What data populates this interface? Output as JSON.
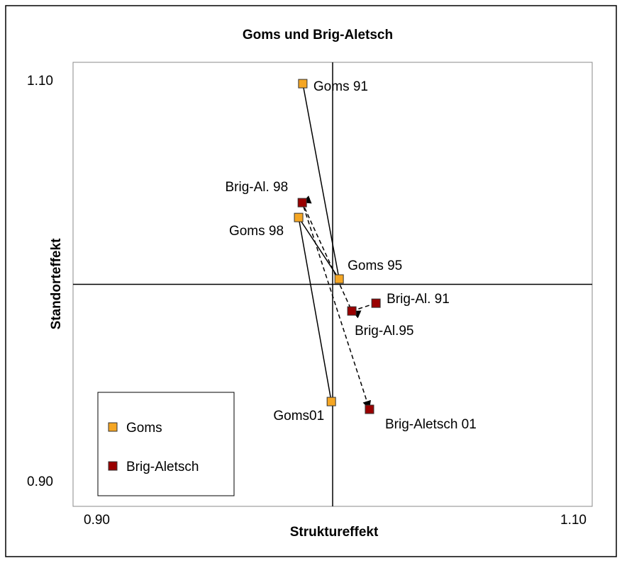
{
  "chart_data": {
    "type": "scatter",
    "title": "Goms und Brig-Aletsch",
    "xlabel": "Strukture­ffekt",
    "ylabel": "Standorteffekt",
    "xlim": [
      0.9,
      1.1
    ],
    "ylim": [
      0.9,
      1.1
    ],
    "xticks": [
      {
        "value": 0.9,
        "label": "0.90"
      },
      {
        "value": 1.1,
        "label": "1.10"
      }
    ],
    "yticks": [
      {
        "value": 0.9,
        "label": "0.90"
      },
      {
        "value": 1.1,
        "label": "1.10"
      }
    ],
    "x_axis_at": 1,
    "y_axis_at": 1,
    "legend": "lower left",
    "series": [
      {
        "name": "Goms",
        "color": "#f5a623",
        "dashed": false,
        "arrows": false,
        "labels": [
          "Goms 91",
          "Goms 95",
          "Goms 98",
          "Goms01"
        ],
        "x": [
          0.9885,
          1.0025,
          0.9869,
          0.9995
        ],
        "values": [
          1.0904,
          1.0024,
          1.0301,
          0.9472
        ]
      },
      {
        "name": "Brig-Aletsch",
        "color": "#990000",
        "dashed": true,
        "arrows": true,
        "labels": [
          "Brig-Al. 91",
          "Brig-Al.95",
          "Brig-Al. 98",
          "Brig-Aletsch 01"
        ],
        "x": [
          1.0167,
          1.0074,
          0.9883,
          1.0142
        ],
        "values": [
          0.9915,
          0.988,
          1.0368,
          0.9437
        ]
      }
    ]
  }
}
